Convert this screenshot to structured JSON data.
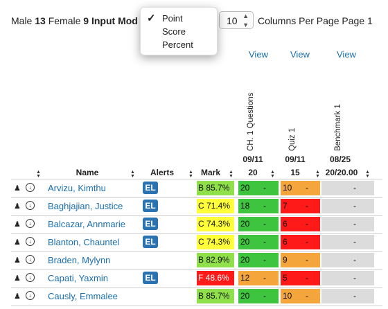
{
  "toolbar": {
    "male_label": "Male",
    "male_count": "13",
    "female_label": "Female",
    "female_count": "9",
    "input_mode_label": "Input Mod",
    "columns_value": "10",
    "columns_label": "Columns Per Page",
    "page_label": "Page 1"
  },
  "input_mode_menu": {
    "options": [
      "Point",
      "Score",
      "Percent"
    ],
    "selected": "Point",
    "check": "✓"
  },
  "view_links": [
    "View",
    "View",
    "View"
  ],
  "assessments": [
    {
      "title": "CH. 1 Questions",
      "date": "09/11",
      "points": "20"
    },
    {
      "title": "Quiz 1",
      "date": "09/11",
      "points": "15"
    },
    {
      "title": "Benchmark 1",
      "date": "08/25",
      "points": "20/20.00"
    }
  ],
  "headers": {
    "name": "Name",
    "alerts": "Alerts",
    "mark": "Mark"
  },
  "students": [
    {
      "name": "Arvizu, Kimthu",
      "alert": "EL",
      "mark": "B 85.7%",
      "mark_color": "lightgreen",
      "scores": [
        {
          "v": "20",
          "d": "-",
          "c": "green"
        },
        {
          "v": "10",
          "d": "-",
          "c": "orange"
        },
        {
          "v": "",
          "d": "-",
          "c": "gray"
        }
      ]
    },
    {
      "name": "Baghjajian, Justice",
      "alert": "EL",
      "mark": "C 71.4%",
      "mark_color": "yellow",
      "scores": [
        {
          "v": "18",
          "d": "-",
          "c": "green"
        },
        {
          "v": "7",
          "d": "-",
          "c": "red"
        },
        {
          "v": "",
          "d": "-",
          "c": "gray"
        }
      ]
    },
    {
      "name": "Balcazar, Annmarie",
      "alert": "EL",
      "mark": "C 74.3%",
      "mark_color": "yellow",
      "scores": [
        {
          "v": "20",
          "d": "-",
          "c": "green"
        },
        {
          "v": "6",
          "d": "-",
          "c": "red"
        },
        {
          "v": "",
          "d": "-",
          "c": "gray"
        }
      ]
    },
    {
      "name": "Blanton, Chauntel",
      "alert": "EL",
      "mark": "C 74.3%",
      "mark_color": "yellow",
      "scores": [
        {
          "v": "20",
          "d": "-",
          "c": "green"
        },
        {
          "v": "6",
          "d": "-",
          "c": "red"
        },
        {
          "v": "",
          "d": "-",
          "c": "gray"
        }
      ]
    },
    {
      "name": "Braden, Mylynn",
      "alert": "",
      "mark": "B 82.9%",
      "mark_color": "lightgreen",
      "scores": [
        {
          "v": "20",
          "d": "-",
          "c": "green"
        },
        {
          "v": "9",
          "d": "-",
          "c": "orange"
        },
        {
          "v": "",
          "d": "-",
          "c": "gray"
        }
      ]
    },
    {
      "name": "Capati, Yaxmin",
      "alert": "EL",
      "mark": "F 48.6%",
      "mark_color": "red",
      "scores": [
        {
          "v": "12",
          "d": "-",
          "c": "orange"
        },
        {
          "v": "5",
          "d": "-",
          "c": "red"
        },
        {
          "v": "",
          "d": "-",
          "c": "gray"
        }
      ]
    },
    {
      "name": "Causly, Emmalee",
      "alert": "",
      "mark": "B 85.7%",
      "mark_color": "lightgreen",
      "scores": [
        {
          "v": "20",
          "d": "-",
          "c": "green"
        },
        {
          "v": "10",
          "d": "-",
          "c": "orange"
        },
        {
          "v": "",
          "d": "-",
          "c": "gray"
        }
      ]
    }
  ],
  "icons": {
    "person": "user-icon",
    "download": "download-icon",
    "sort": "sort-icon"
  }
}
